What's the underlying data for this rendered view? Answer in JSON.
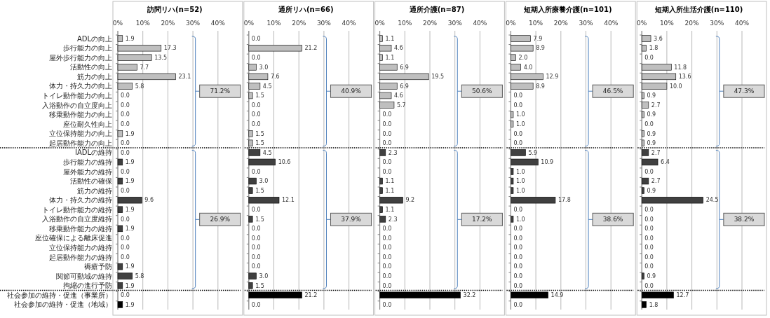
{
  "chart_data": [
    {
      "type": "bar",
      "orientation": "horizontal",
      "title": "訪問リハ(n=52)",
      "categories": [
        "ADLの向上",
        "歩行能力の向上",
        "屋外歩行能力の向上",
        "活動性の向上",
        "筋力の向上",
        "体力・持久力の向上",
        "トイレ動作能力の向上",
        "入浴動作の自立度向上",
        "移乗動作能力の向上",
        "座位耐久性向上",
        "立位保持能力の向上",
        "起居動作能力の向上",
        "IADLの維持",
        "歩行能力の維持",
        "屋外能力の維持",
        "活動性の確保",
        "筋力の維持",
        "体力・持久力の維持",
        "トイレ動作能力の維持",
        "入浴動作の自立度維持",
        "移乗動作能力の維持",
        "座位確保による離床促進",
        "立位保持能力の維持",
        "起居動作能力の維持",
        "褥瘡予防",
        "関節可動域の維持",
        "拘縮の進行予防",
        "社会参加の維持・促進（事業所）",
        "社会参加の維持・促進（地域）"
      ],
      "values": [
        1.9,
        17.3,
        13.5,
        7.7,
        23.1,
        5.8,
        0,
        0,
        0,
        0,
        1.9,
        0,
        0,
        1.9,
        0,
        1.9,
        0,
        9.6,
        1.9,
        0,
        1.9,
        0,
        0,
        0,
        1.9,
        5.8,
        1.9,
        0,
        1.9
      ],
      "value_labels": [
        "1.9",
        "17.3",
        "13.5",
        "7.7",
        "23.1",
        "5.8",
        "0.0",
        "0.0",
        "0.0",
        "0.0",
        "1.9",
        "0.0",
        "0.0",
        "1.9",
        "0.0",
        "1.9",
        "0.0",
        "9.6",
        "1.9",
        "0.0",
        "1.9",
        "0.0",
        "0.0",
        "0.0",
        "1.9",
        "5.8",
        "1.9",
        "0.0",
        "1.9"
      ],
      "colors": [
        "#bfbfbf",
        "#bfbfbf",
        "#bfbfbf",
        "#bfbfbf",
        "#bfbfbf",
        "#bfbfbf",
        "#bfbfbf",
        "#bfbfbf",
        "#bfbfbf",
        "#bfbfbf",
        "#bfbfbf",
        "#bfbfbf",
        "#404040",
        "#404040",
        "#404040",
        "#404040",
        "#404040",
        "#404040",
        "#404040",
        "#404040",
        "#404040",
        "#404040",
        "#404040",
        "#404040",
        "#404040",
        "#404040",
        "#404040",
        "#000000",
        "#000000"
      ],
      "xlim": [
        0,
        40
      ],
      "xticks": [
        {
          "value": 0,
          "label": "0%"
        },
        {
          "value": 10,
          "label": "10%"
        },
        {
          "value": 20,
          "label": "20%"
        },
        {
          "value": 30,
          "label": "30%"
        },
        {
          "value": 40,
          "label": "40%"
        }
      ],
      "grid": "x",
      "annotations": [
        "71.2%",
        "26.9%"
      ]
    },
    {
      "type": "bar",
      "orientation": "horizontal",
      "title": "通所リハ(n=66)",
      "categories": [
        null,
        null,
        null,
        null,
        null,
        null,
        null,
        null,
        null,
        null,
        null,
        null,
        null,
        null,
        null,
        null,
        null,
        null,
        null,
        null,
        null,
        null,
        null,
        null,
        null,
        null,
        null,
        null,
        null
      ],
      "values": [
        0,
        21.2,
        0,
        3.0,
        7.6,
        4.5,
        1.5,
        0,
        0,
        0,
        1.5,
        1.5,
        4.5,
        10.6,
        0,
        3.0,
        1.5,
        12.1,
        0,
        1.5,
        0,
        0,
        0,
        0,
        0,
        3.0,
        1.5,
        21.2,
        0
      ],
      "value_labels": [
        "0.0",
        "21.2",
        "0.0",
        "3.0",
        "7.6",
        "4.5",
        "1.5",
        "0.0",
        "0.0",
        "0.0",
        "1.5",
        "1.5",
        "4.5",
        "10.6",
        "0.0",
        "3.0",
        "1.5",
        "12.1",
        "0.0",
        "1.5",
        "0.0",
        "0.0",
        "0.0",
        "0.0",
        "0.0",
        "3.0",
        "1.5",
        "21.2",
        "0.0"
      ],
      "colors": [
        "#bfbfbf",
        "#bfbfbf",
        "#bfbfbf",
        "#bfbfbf",
        "#bfbfbf",
        "#bfbfbf",
        "#bfbfbf",
        "#bfbfbf",
        "#bfbfbf",
        "#bfbfbf",
        "#bfbfbf",
        "#bfbfbf",
        "#404040",
        "#404040",
        "#404040",
        "#404040",
        "#404040",
        "#404040",
        "#404040",
        "#404040",
        "#404040",
        "#404040",
        "#404040",
        "#404040",
        "#404040",
        "#404040",
        "#404040",
        "#000000",
        "#000000"
      ],
      "xlim": [
        0,
        40
      ],
      "xticks": [
        {
          "value": 0,
          "label": "0%"
        },
        {
          "value": 10,
          "label": "10%"
        },
        {
          "value": 20,
          "label": "20%"
        },
        {
          "value": 30,
          "label": "30%"
        },
        {
          "value": 40,
          "label": "40%"
        }
      ],
      "grid": "x",
      "annotations": [
        "40.9%",
        "37.9%"
      ]
    },
    {
      "type": "bar",
      "orientation": "horizontal",
      "title": "通所介護(n=87)",
      "categories": [
        null,
        null,
        null,
        null,
        null,
        null,
        null,
        null,
        null,
        null,
        null,
        null,
        null,
        null,
        null,
        null,
        null,
        null,
        null,
        null,
        null,
        null,
        null,
        null,
        null,
        null,
        null,
        null,
        null
      ],
      "values": [
        1.1,
        4.6,
        1.1,
        6.9,
        19.5,
        6.9,
        4.6,
        5.7,
        0,
        0,
        0,
        0,
        2.3,
        0,
        0,
        1.1,
        1.1,
        9.2,
        1.1,
        2.3,
        0,
        0,
        0,
        0,
        0,
        0,
        0,
        32.2,
        0
      ],
      "value_labels": [
        "1.1",
        "4.6",
        "1.1",
        "6.9",
        "19.5",
        "6.9",
        "4.6",
        "5.7",
        "0.0",
        "0.0",
        "0.0",
        "0.0",
        "2.3",
        "0.0",
        "0.0",
        "1.1",
        "1.1",
        "9.2",
        "1.1",
        "2.3",
        "0.0",
        "0.0",
        "0.0",
        "0.0",
        "0.0",
        "0.0",
        "0.0",
        "32.2",
        "0.0"
      ],
      "colors": [
        "#bfbfbf",
        "#bfbfbf",
        "#bfbfbf",
        "#bfbfbf",
        "#bfbfbf",
        "#bfbfbf",
        "#bfbfbf",
        "#bfbfbf",
        "#bfbfbf",
        "#bfbfbf",
        "#bfbfbf",
        "#bfbfbf",
        "#404040",
        "#404040",
        "#404040",
        "#404040",
        "#404040",
        "#404040",
        "#404040",
        "#404040",
        "#404040",
        "#404040",
        "#404040",
        "#404040",
        "#404040",
        "#404040",
        "#404040",
        "#000000",
        "#000000"
      ],
      "xlim": [
        0,
        40
      ],
      "xticks": [
        {
          "value": 0,
          "label": "0%"
        },
        {
          "value": 10,
          "label": "10%"
        },
        {
          "value": 20,
          "label": "20%"
        },
        {
          "value": 30,
          "label": "30%"
        },
        {
          "value": 40,
          "label": "40%"
        }
      ],
      "grid": "x",
      "annotations": [
        "50.6%",
        "17.2%"
      ]
    },
    {
      "type": "bar",
      "orientation": "horizontal",
      "title": "短期入所療養介護(n=101)",
      "categories": [
        null,
        null,
        null,
        null,
        null,
        null,
        null,
        null,
        null,
        null,
        null,
        null,
        null,
        null,
        null,
        null,
        null,
        null,
        null,
        null,
        null,
        null,
        null,
        null,
        null,
        null,
        null,
        null,
        null
      ],
      "values": [
        7.9,
        8.9,
        2.0,
        4.0,
        12.9,
        8.9,
        0,
        0,
        1.0,
        1.0,
        0,
        0,
        5.9,
        10.9,
        1.0,
        1.0,
        1.0,
        17.8,
        0,
        1.0,
        0,
        0,
        0,
        0,
        0,
        0,
        0,
        14.9,
        0
      ],
      "value_labels": [
        "7.9",
        "8.9",
        "2.0",
        "4.0",
        "12.9",
        "8.9",
        "0.0",
        "0.0",
        "1.0",
        "1.0",
        "0.0",
        "0.0",
        "5.9",
        "10.9",
        "1.0",
        "1.0",
        "1.0",
        "17.8",
        "0.0",
        "1.0",
        "0.0",
        "0.0",
        "0.0",
        "0.0",
        "0.0",
        "0.0",
        "0.0",
        "14.9",
        "0.0"
      ],
      "colors": [
        "#bfbfbf",
        "#bfbfbf",
        "#bfbfbf",
        "#bfbfbf",
        "#bfbfbf",
        "#bfbfbf",
        "#bfbfbf",
        "#bfbfbf",
        "#bfbfbf",
        "#bfbfbf",
        "#bfbfbf",
        "#bfbfbf",
        "#404040",
        "#404040",
        "#404040",
        "#404040",
        "#404040",
        "#404040",
        "#404040",
        "#404040",
        "#404040",
        "#404040",
        "#404040",
        "#404040",
        "#404040",
        "#404040",
        "#404040",
        "#000000",
        "#000000"
      ],
      "xlim": [
        0,
        40
      ],
      "xticks": [
        {
          "value": 0,
          "label": "0%"
        },
        {
          "value": 10,
          "label": "10%"
        },
        {
          "value": 20,
          "label": "20%"
        },
        {
          "value": 30,
          "label": "30%"
        },
        {
          "value": 40,
          "label": "40%"
        }
      ],
      "grid": "x",
      "annotations": [
        "46.5%",
        "38.6%"
      ]
    },
    {
      "type": "bar",
      "orientation": "horizontal",
      "title": "短期入所生活介護(n=110)",
      "categories": [
        null,
        null,
        null,
        null,
        null,
        null,
        null,
        null,
        null,
        null,
        null,
        null,
        null,
        null,
        null,
        null,
        null,
        null,
        null,
        null,
        null,
        null,
        null,
        null,
        null,
        null,
        null,
        null,
        null
      ],
      "values": [
        3.6,
        1.8,
        0,
        11.8,
        13.6,
        10.0,
        0.9,
        2.7,
        0.9,
        0,
        0.9,
        0.9,
        2.7,
        6.4,
        0,
        2.7,
        0.9,
        24.5,
        0,
        0,
        0,
        0,
        0,
        0,
        0,
        0.9,
        0,
        12.7,
        1.8
      ],
      "value_labels": [
        "3.6",
        "1.8",
        "0.0",
        "11.8",
        "13.6",
        "10.0",
        "0.9",
        "2.7",
        "0.9",
        "0.0",
        "0.9",
        "0.9",
        "2.7",
        "6.4",
        "0.0",
        "2.7",
        "0.9",
        "24.5",
        "0.0",
        "0.0",
        "0.0",
        "0.0",
        "0.0",
        "0.0",
        "0.0",
        "0.9",
        "0.0",
        "12.7",
        "1.8"
      ],
      "colors": [
        "#bfbfbf",
        "#bfbfbf",
        "#bfbfbf",
        "#bfbfbf",
        "#bfbfbf",
        "#bfbfbf",
        "#bfbfbf",
        "#bfbfbf",
        "#bfbfbf",
        "#bfbfbf",
        "#bfbfbf",
        "#bfbfbf",
        "#404040",
        "#404040",
        "#404040",
        "#404040",
        "#404040",
        "#404040",
        "#404040",
        "#404040",
        "#404040",
        "#404040",
        "#404040",
        "#404040",
        "#404040",
        "#404040",
        "#404040",
        "#000000",
        "#000000"
      ],
      "xlim": [
        0,
        40
      ],
      "xticks": [
        {
          "value": 0,
          "label": "0%"
        },
        {
          "value": 10,
          "label": "10%"
        },
        {
          "value": 20,
          "label": "20%"
        },
        {
          "value": 30,
          "label": "30%"
        },
        {
          "value": 40,
          "label": "40%"
        }
      ],
      "grid": "x",
      "annotations": [
        "47.3%",
        "38.2%"
      ]
    }
  ]
}
